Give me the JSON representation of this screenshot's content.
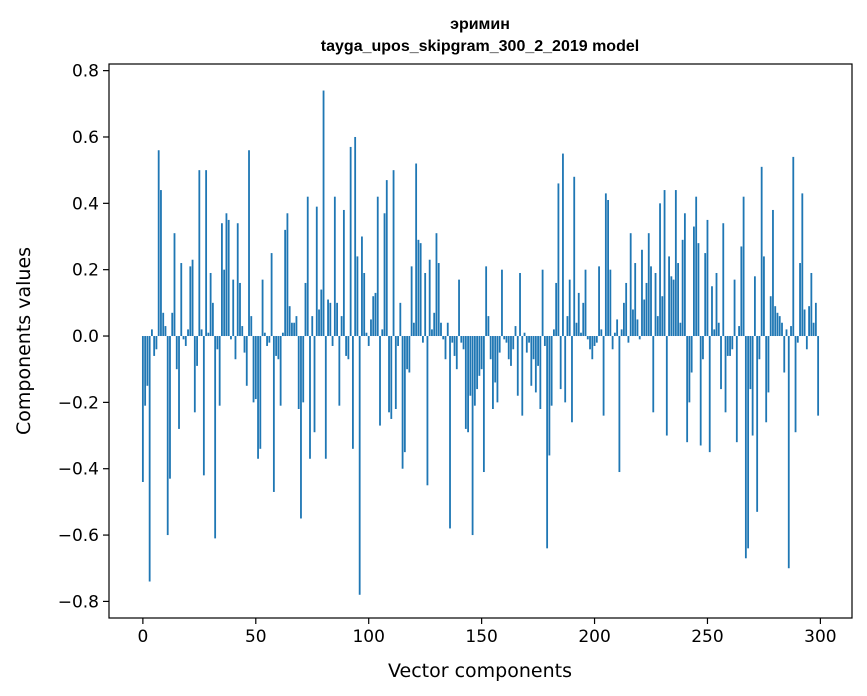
{
  "chart_data": {
    "type": "bar",
    "title": "эримин",
    "subtitle": "tayga_upos_skipgram_300_2_2019 model",
    "xlabel": "Vector components",
    "ylabel": "Components values",
    "xlim": [
      -15,
      314
    ],
    "ylim": [
      -0.85,
      0.82
    ],
    "xticks": [
      0,
      50,
      100,
      150,
      200,
      250,
      300
    ],
    "yticks": [
      -0.8,
      -0.6,
      -0.4,
      -0.2,
      0.0,
      0.2,
      0.4,
      0.6,
      0.8
    ],
    "ytick_labels": [
      "−0.8",
      "−0.6",
      "−0.4",
      "−0.2",
      "0.0",
      "0.2",
      "0.4",
      "0.6",
      "0.8"
    ],
    "grid": false,
    "bar_color": "#1f77b4",
    "x": "0..299",
    "values": [
      -0.44,
      -0.21,
      -0.15,
      -0.74,
      0.02,
      -0.06,
      -0.04,
      0.56,
      0.44,
      0.07,
      0.03,
      -0.6,
      -0.43,
      0.07,
      0.31,
      -0.1,
      -0.28,
      0.22,
      -0.01,
      -0.03,
      0.02,
      0.21,
      0.23,
      -0.23,
      -0.09,
      0.5,
      0.02,
      -0.42,
      0.5,
      0.01,
      0.19,
      0.1,
      -0.61,
      -0.04,
      -0.21,
      0.34,
      0.2,
      0.37,
      0.35,
      -0.01,
      0.17,
      -0.07,
      0.34,
      0.16,
      0.03,
      -0.05,
      -0.15,
      0.56,
      0.06,
      -0.2,
      -0.19,
      -0.37,
      -0.34,
      0.17,
      0.01,
      -0.03,
      -0.02,
      0.25,
      -0.47,
      -0.06,
      -0.07,
      -0.21,
      0.01,
      0.32,
      0.37,
      0.09,
      0.04,
      0.04,
      0.06,
      -0.22,
      -0.55,
      -0.2,
      0.16,
      0.42,
      -0.37,
      0.06,
      -0.29,
      0.39,
      0.08,
      0.14,
      0.74,
      -0.37,
      0.11,
      0.1,
      -0.03,
      0.42,
      0.1,
      -0.21,
      0.06,
      0.38,
      -0.06,
      -0.07,
      0.57,
      -0.34,
      0.6,
      0.24,
      -0.78,
      0.3,
      0.19,
      0.01,
      -0.03,
      0.05,
      0.12,
      0.13,
      0.42,
      -0.27,
      0.02,
      0.37,
      0.47,
      -0.23,
      -0.25,
      0.5,
      -0.22,
      -0.03,
      0.1,
      -0.4,
      -0.35,
      -0.1,
      -0.11,
      0.21,
      0.04,
      0.52,
      0.29,
      0.28,
      -0.02,
      0.19,
      -0.45,
      0.23,
      0.02,
      0.07,
      0.31,
      0.22,
      0.04,
      -0.01,
      -0.07,
      0.04,
      -0.58,
      -0.02,
      -0.06,
      -0.1,
      0.17,
      -0.02,
      -0.04,
      -0.28,
      -0.29,
      -0.18,
      -0.6,
      -0.21,
      -0.16,
      -0.12,
      -0.1,
      -0.41,
      0.21,
      0.06,
      -0.07,
      -0.22,
      -0.14,
      -0.2,
      -0.05,
      0.2,
      -0.01,
      -0.02,
      -0.07,
      -0.09,
      -0.04,
      0.03,
      -0.18,
      0.19,
      -0.24,
      0.01,
      -0.05,
      -0.02,
      -0.15,
      -0.07,
      -0.17,
      -0.09,
      -0.22,
      0.2,
      -0.03,
      -0.64,
      -0.36,
      -0.21,
      0.02,
      0.16,
      0.46,
      -0.16,
      0.55,
      -0.2,
      0.06,
      0.17,
      -0.26,
      0.48,
      0.04,
      0.13,
      0.01,
      0.1,
      0.2,
      -0.01,
      -0.04,
      -0.07,
      -0.03,
      -0.02,
      0.21,
      0.02,
      -0.24,
      0.43,
      0.41,
      0.2,
      -0.04,
      0.01,
      0.05,
      -0.41,
      0.02,
      0.1,
      0.16,
      -0.02,
      0.31,
      0.08,
      0.22,
      0.05,
      -0.01,
      0.26,
      0.11,
      0.16,
      0.31,
      0.21,
      -0.23,
      0.19,
      0.06,
      0.4,
      0.12,
      0.44,
      -0.3,
      0.24,
      0.18,
      0.17,
      0.44,
      0.22,
      0.04,
      0.29,
      0.37,
      -0.32,
      -0.2,
      -0.11,
      0.33,
      0.42,
      0.28,
      -0.33,
      -0.07,
      0.25,
      0.35,
      -0.35,
      0.15,
      0.02,
      0.19,
      0.04,
      -0.16,
      0.34,
      -0.23,
      -0.06,
      -0.06,
      -0.04,
      0.17,
      -0.32,
      0.03,
      0.27,
      0.42,
      -0.67,
      -0.64,
      -0.16,
      -0.3,
      0.18,
      -0.53,
      -0.07,
      0.51,
      0.24,
      -0.26,
      -0.17,
      0.12,
      0.38,
      0.09,
      0.07,
      0.06,
      0.04,
      -0.11,
      0.02,
      -0.7,
      0.03,
      0.54,
      -0.29,
      -0.02,
      0.22,
      0.43,
      0.08,
      -0.04,
      0.09,
      0.19,
      0.04,
      0.1,
      -0.24
    ]
  }
}
